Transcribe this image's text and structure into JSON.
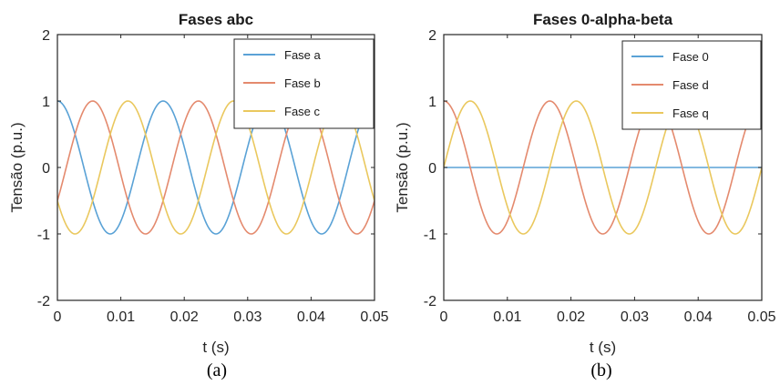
{
  "chart_data": [
    {
      "type": "line",
      "title": "Fases abc",
      "xlabel": "t (s)",
      "ylabel": "Tensão (p.u.)",
      "xlim": [
        0,
        0.05
      ],
      "ylim": [
        -2,
        2
      ],
      "xticks": [
        "0",
        "0.01",
        "0.02",
        "0.03",
        "0.04",
        "0.05"
      ],
      "yticks": [
        "2",
        "1",
        "0",
        "-1",
        "-2"
      ],
      "legend_position": "top-right",
      "frequency_hz": 60,
      "caption": "(a)",
      "series": [
        {
          "name": "Fase a",
          "color": "#5aa2d6",
          "amplitude": 1,
          "phase_deg": 0,
          "offset": 0
        },
        {
          "name": "Fase b",
          "color": "#e48a6e",
          "amplitude": 1,
          "phase_deg": -120,
          "offset": 0
        },
        {
          "name": "Fase c",
          "color": "#eac85e",
          "amplitude": 1,
          "phase_deg": 120,
          "offset": 0
        }
      ]
    },
    {
      "type": "line",
      "title": "Fases 0-alpha-beta",
      "xlabel": "t (s)",
      "ylabel": "Tensão (p.u.)",
      "xlim": [
        0,
        0.05
      ],
      "ylim": [
        -2,
        2
      ],
      "xticks": [
        "0",
        "0.01",
        "0.02",
        "0.03",
        "0.04",
        "0.05"
      ],
      "yticks": [
        "2",
        "1",
        "0",
        "-1",
        "-2"
      ],
      "legend_position": "top-right",
      "frequency_hz": 60,
      "caption": "(b)",
      "series": [
        {
          "name": "Fase 0",
          "color": "#5aa2d6",
          "amplitude": 0,
          "phase_deg": 0,
          "offset": 0
        },
        {
          "name": "Fase d",
          "color": "#e48a6e",
          "amplitude": 1,
          "phase_deg": 0,
          "offset": 0
        },
        {
          "name": "Fase q",
          "color": "#eac85e",
          "amplitude": 1,
          "phase_deg": -90,
          "offset": 0
        }
      ]
    }
  ]
}
